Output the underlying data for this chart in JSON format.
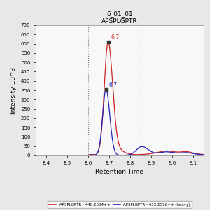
{
  "title_line1": "6_01_01",
  "title_line2": "APSPLGPTR",
  "xlabel": "Retention Time",
  "ylabel": "Intensity 10^3",
  "xlim": [
    8.35,
    9.15
  ],
  "ylim": [
    0,
    700
  ],
  "yticks": [
    0,
    50,
    100,
    150,
    200,
    250,
    300,
    350,
    400,
    450,
    500,
    550,
    600,
    650,
    700
  ],
  "xticks": [
    8.4,
    8.5,
    8.6,
    8.7,
    8.8,
    8.9,
    9.0,
    9.1
  ],
  "vline1": 8.6,
  "vline2": 8.85,
  "red_peak_x": 8.695,
  "red_peak_y": 610,
  "blue_peak_x": 8.685,
  "blue_peak_y": 355,
  "red_label": "6.7",
  "blue_label": "6.7",
  "red_color": "#cc2222",
  "blue_color": "#2222bb",
  "legend_red": "APSPLGPTR - 448.2534++",
  "legend_blue": "APSPLGPTR - 453.2576++ (heavy)",
  "bg_color": "#e8e8e8",
  "plot_bg": "#f8f8f8"
}
